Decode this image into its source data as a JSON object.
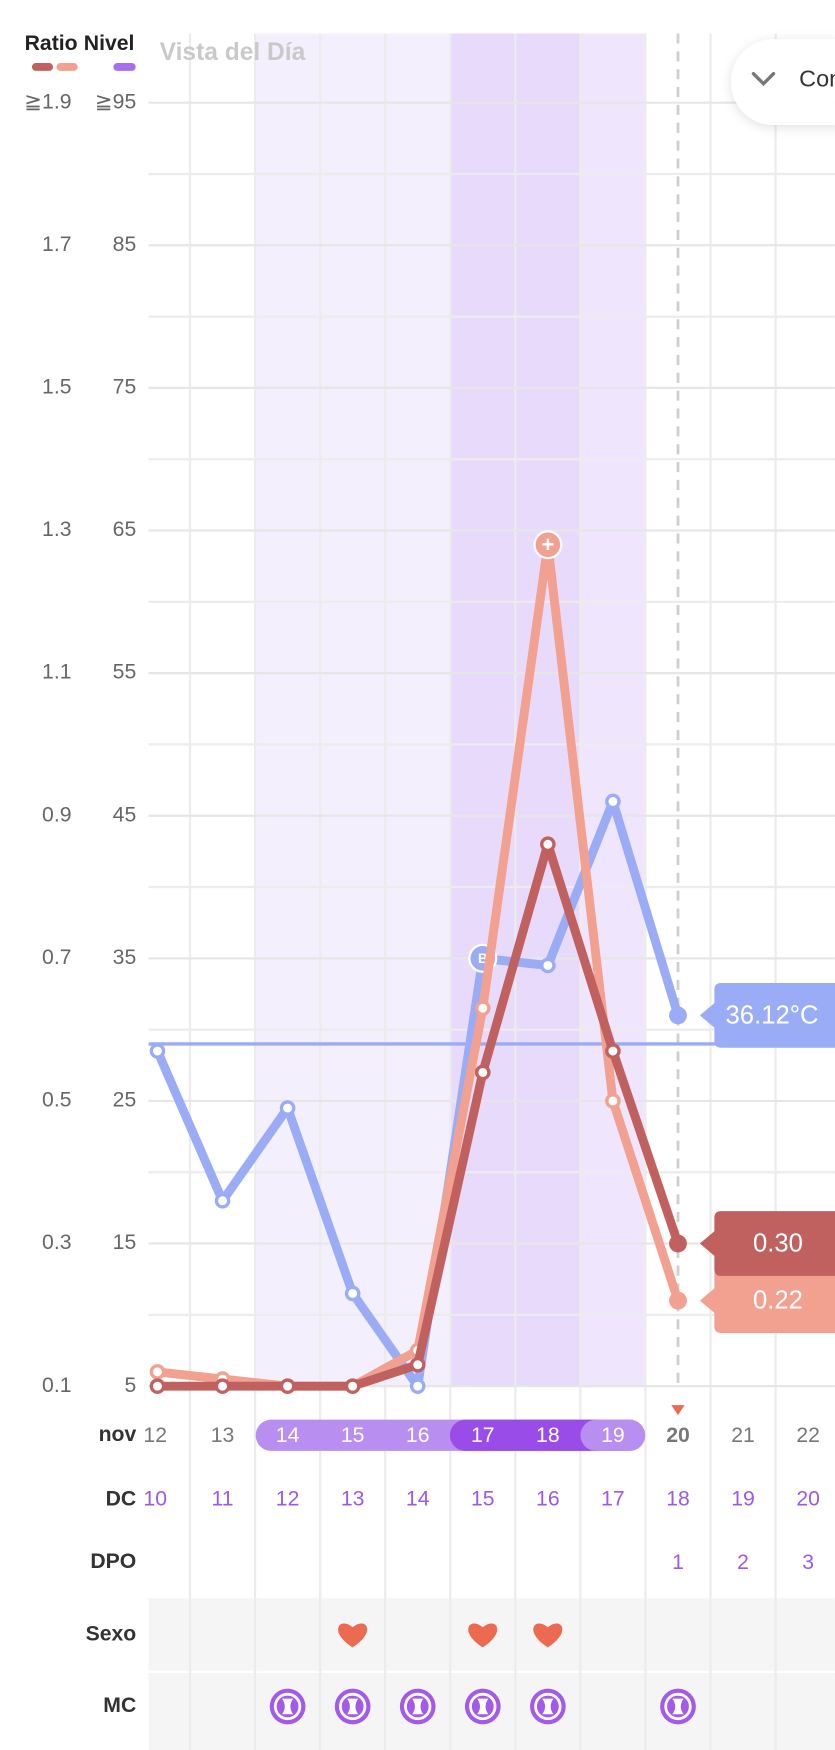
{
  "chart_data": {
    "type": "line",
    "title": "Vista del Día",
    "categories": [
      "12",
      "13",
      "14",
      "15",
      "16",
      "17",
      "18",
      "19",
      "20",
      "21",
      "22"
    ],
    "month": "nov",
    "legend": {
      "ratio": "Ratio",
      "ratio_colors": [
        "#c0615f",
        "#f2a090"
      ],
      "nivel": "Nivel",
      "nivel_color": "#a66ef0"
    },
    "ylim": [
      0.1,
      1.9
    ],
    "yticks": [
      {
        "value": 1.9,
        "label": "≧1.9"
      },
      1.7,
      1.5,
      1.3,
      1.1,
      0.9,
      0.7,
      0.5,
      0.3,
      0.1
    ],
    "y2lim": [
      5,
      95
    ],
    "y2ticks": [
      {
        "value": 95,
        "label": "≧95"
      },
      85,
      75,
      65,
      55,
      45,
      35,
      25,
      15,
      5
    ],
    "y3lim": [
      35.6,
      37.4
    ],
    "coverline": 36.08,
    "grid": true,
    "series": [
      {
        "color": "#9aacf5",
        "axis": "y3",
        "values": [
          36.07,
          35.86,
          35.99,
          35.73,
          35.6,
          36.2,
          36.19,
          36.42,
          36.12,
          null,
          null
        ],
        "value_labels": [
          null,
          null,
          null,
          null,
          null,
          null,
          null,
          null,
          "36.12°C",
          null,
          null
        ],
        "point_labels": [
          null,
          null,
          null,
          null,
          null,
          "B",
          null,
          null,
          null,
          null,
          null
        ]
      },
      {
        "color": "#f2a090",
        "axis": "y",
        "values": [
          0.12,
          0.11,
          0.1,
          0.1,
          0.15,
          0.63,
          1.28,
          0.5,
          0.22,
          null,
          null
        ],
        "point_labels": [
          null,
          null,
          null,
          null,
          null,
          null,
          "+",
          null,
          null,
          null,
          null
        ]
      },
      {
        "color": "#c0615f",
        "axis": "y",
        "values": [
          0.1,
          0.1,
          0.1,
          0.1,
          0.13,
          0.54,
          0.86,
          0.57,
          0.3,
          null,
          null
        ],
        "value_labels": [
          null,
          null,
          null,
          null,
          null,
          null,
          null,
          null,
          "0.30",
          null,
          null
        ]
      }
    ],
    "rows": {
      "dc": "DC",
      "dpo": "DPO",
      "sexo": "Sexo",
      "mc": "MC"
    },
    "dc": [
      10,
      11,
      12,
      13,
      14,
      15,
      16,
      17,
      18,
      19,
      20
    ],
    "dpo": [
      null,
      null,
      null,
      null,
      null,
      null,
      null,
      null,
      1,
      2,
      3
    ],
    "sexo": [
      false,
      false,
      false,
      true,
      false,
      true,
      true,
      false,
      false,
      false,
      false
    ],
    "mc": [
      false,
      false,
      true,
      true,
      true,
      true,
      true,
      false,
      true,
      false,
      false
    ],
    "selected": 8
  },
  "dropdown": "Con"
}
